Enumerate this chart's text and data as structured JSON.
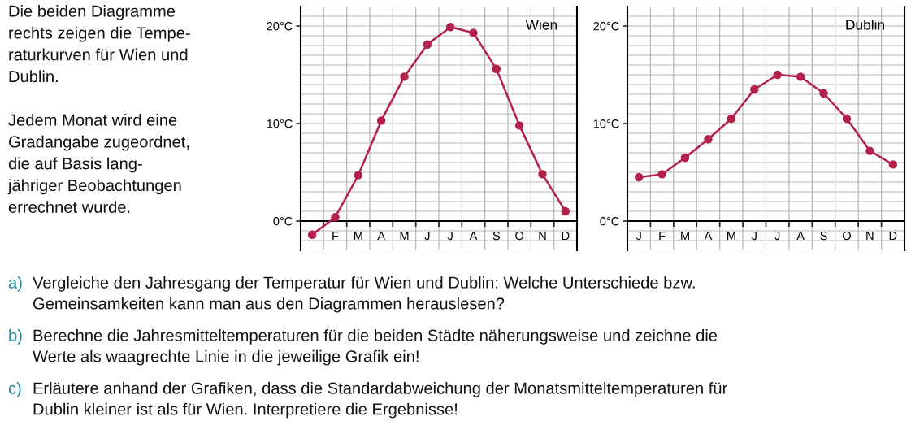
{
  "chart_data": [
    {
      "type": "other",
      "annotations": [
        "Die beiden Diagramme\nrechts zeigen die Tempe-\nraturkurven für Wien und\nDublin.",
        "Jedem Monat wird eine\nGradangabe zugeordnet,\ndie auf Basis lang-\njähriger Beobachtungen\nerrechnet wurde."
      ]
    },
    {
      "type": "line",
      "title": "Wien",
      "categories": [
        null,
        "F",
        "M",
        "A",
        "M",
        "J",
        "J",
        "A",
        "S",
        "O",
        "N",
        "D"
      ],
      "marker": "circle",
      "grid": true,
      "series": [
        {
          "color": "#b3204a",
          "values": [
            -1.4,
            0.4,
            4.7,
            10.3,
            14.8,
            18.1,
            19.9,
            19.3,
            15.6,
            9.8,
            4.8,
            1.0
          ]
        }
      ],
      "ylim": [
        -3,
        22
      ],
      "yticks": [
        {
          "value": 0,
          "label": "0°C"
        },
        {
          "value": 10,
          "label": "10°C"
        },
        {
          "value": 20,
          "label": "20°C"
        }
      ]
    },
    {
      "type": "line",
      "title": "Dublin",
      "categories": [
        "J",
        "F",
        "M",
        "A",
        "M",
        "J",
        "J",
        "A",
        "S",
        "O",
        "N",
        "D"
      ],
      "marker": "circle",
      "grid": true,
      "series": [
        {
          "color": "#b3204a",
          "values": [
            4.5,
            4.8,
            6.5,
            8.4,
            10.5,
            13.5,
            15.0,
            14.8,
            13.1,
            10.5,
            7.2,
            5.8
          ]
        }
      ],
      "ylim": [
        -3,
        22
      ],
      "yticks": [
        {
          "value": 0,
          "label": "0°C"
        },
        {
          "value": 10,
          "label": "10°C"
        },
        {
          "value": 20,
          "label": "20°C"
        }
      ]
    },
    {
      "type": "other",
      "annotations": [
        "a) Vergleiche den Jahresgang der Temperatur für Wien und Dublin: Welche Unterschiede bzw.\nGemeinsamkeiten kann man aus den Diagrammen herauslesen?",
        "b) Berechne die Jahresmitteltemperaturen für die beiden Städte näherungsweise und zeichne die\nWerte als waagrechte Linie in die jeweilige Grafik ein!",
        "c) Erläutere anhand der Grafiken, dass die Standardabweichung der Monatsmitteltemperaturen für\nDublin kleiner ist als für Wien. Interpretiere die Ergebnisse!"
      ]
    }
  ]
}
